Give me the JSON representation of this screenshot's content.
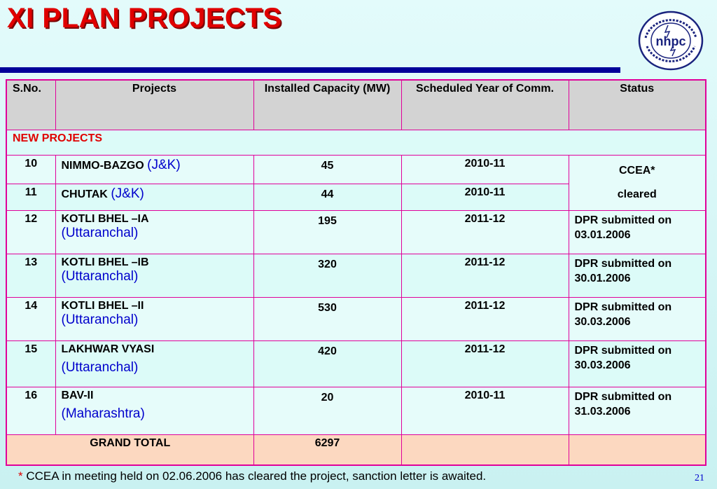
{
  "title": "XI PLAN PROJECTS",
  "logo": {
    "text": "nhpc",
    "icon": "nhpc-logo-seal",
    "ring_text": "राष्ट्रीय जलविद्युत निगम लिमिटेड"
  },
  "table": {
    "headers": [
      "S.No.",
      "Projects",
      "Installed Capacity (MW)",
      "Scheduled Year of Comm.",
      "Status"
    ],
    "section": "NEW PROJECTS",
    "rows": [
      {
        "sno": "10",
        "name": "NIMMO-BAZGO",
        "location": "(J&K)",
        "capacity": "45",
        "year": "2010-11",
        "status": ""
      },
      {
        "sno": "11",
        "name": "CHUTAK",
        "location": "(J&K)",
        "capacity": "44",
        "year": "2010-11",
        "status": ""
      },
      {
        "sno": "12",
        "name": "KOTLI  BHEL –IA",
        "location": "(Uttaranchal)",
        "capacity": "195",
        "year": "2011-12",
        "status": "DPR  submitted on 03.01.2006"
      },
      {
        "sno": "13",
        "name": "KOTLI  BHEL –IB",
        "location": "(Uttaranchal)",
        "capacity": "320",
        "year": "2011-12",
        "status": "DPR submitted on 30.01.2006"
      },
      {
        "sno": "14",
        "name": "KOTLI  BHEL –II",
        "location": "(Uttaranchal)",
        "capacity": "530",
        "year": "2011-12",
        "status": "DPR submitted on 30.03.2006"
      },
      {
        "sno": "15",
        "name": "LAKHWAR VYASI",
        "location": "(Uttaranchal)",
        "capacity": "420",
        "year": "2011-12",
        "status": "DPR submitted on 30.03.2006"
      },
      {
        "sno": "16",
        "name": "BAV-II",
        "location": "(Maharashtra)",
        "capacity": "20",
        "year": "2010-11",
        "status": "DPR submitted on 31.03.2006"
      }
    ],
    "merged_status": {
      "line1": "CCEA*",
      "line2": "cleared"
    },
    "total": {
      "label": "GRAND TOTAL",
      "value": "6297"
    }
  },
  "footnote": {
    "marker": "*",
    "text": "CCEA in meeting held on 02.06.2006 has cleared the project, sanction letter is awaited."
  },
  "page_number": "21",
  "colors": {
    "title": "#e00000",
    "rule": "#000099",
    "border": "#e0009a",
    "header_text": "#0000cc",
    "total_bg": "#fcd8c0"
  }
}
